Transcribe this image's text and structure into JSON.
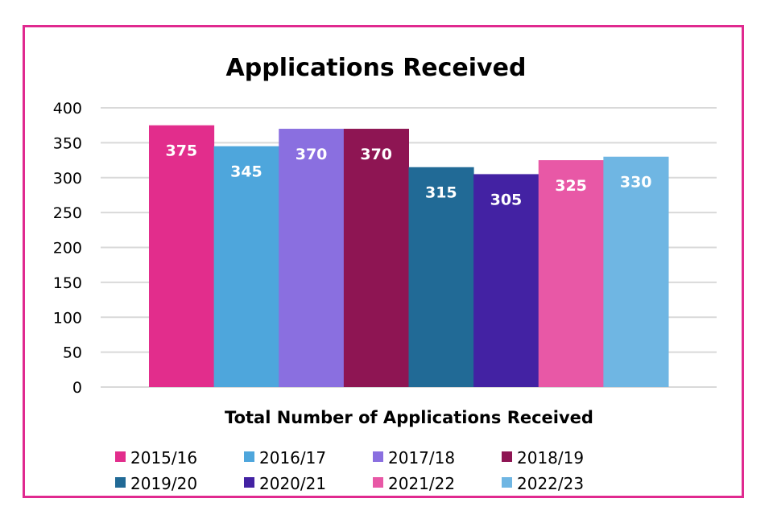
{
  "chart_data": {
    "type": "bar",
    "title": "Applications Received",
    "xlabel": "Total Number of Applications Received",
    "ylabel": "",
    "ylim": [
      0,
      400
    ],
    "yticks": [
      0,
      50,
      100,
      150,
      200,
      250,
      300,
      350,
      400
    ],
    "grid": true,
    "legend": "bottom",
    "series": [
      {
        "name": "2015/16",
        "value": 375,
        "color": "#e22d8c"
      },
      {
        "name": "2016/17",
        "value": 345,
        "color": "#4ea6dc"
      },
      {
        "name": "2017/18",
        "value": 370,
        "color": "#8a6fe0"
      },
      {
        "name": "2018/19",
        "value": 370,
        "color": "#8e1553"
      },
      {
        "name": "2019/20",
        "value": 315,
        "color": "#216a96"
      },
      {
        "name": "2020/21",
        "value": 305,
        "color": "#4322a3"
      },
      {
        "name": "2021/22",
        "value": 325,
        "color": "#e858a6"
      },
      {
        "name": "2022/23",
        "value": 330,
        "color": "#6fb6e3"
      }
    ]
  }
}
